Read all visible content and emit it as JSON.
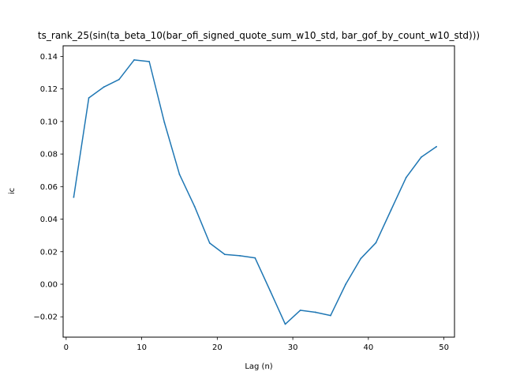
{
  "chart_data": {
    "type": "line",
    "title": "ts_rank_25(sin(ta_beta_10(bar_ofi_signed_quote_sum_w10_std, bar_gof_by_count_w10_std)))",
    "xlabel": "Lag (n)",
    "ylabel": "ic",
    "xlim": [
      -0.4,
      51.4
    ],
    "ylim": [
      -0.0325,
      0.1465
    ],
    "xticks": [
      0,
      10,
      20,
      30,
      40,
      50
    ],
    "yticks": [
      -0.02,
      0.0,
      0.02,
      0.04,
      0.06,
      0.08,
      0.1,
      0.12,
      0.14
    ],
    "ytick_labels": [
      "−0.02",
      "0.00",
      "0.02",
      "0.04",
      "0.06",
      "0.08",
      "0.10",
      "0.12",
      "0.14"
    ],
    "grid": false,
    "series": [
      {
        "color": "#1f77b4",
        "x": [
          1,
          3,
          5,
          7,
          9,
          11,
          13,
          15,
          17,
          19,
          21,
          23,
          25,
          27,
          29,
          31,
          33,
          35,
          37,
          39,
          41,
          43,
          45,
          47,
          49
        ],
        "y": [
          0.0535,
          0.1145,
          0.1212,
          0.1258,
          0.1378,
          0.1368,
          0.0995,
          0.0675,
          0.0478,
          0.0253,
          0.0183,
          0.0175,
          0.0162,
          -0.004,
          -0.0245,
          -0.016,
          -0.0172,
          -0.0192,
          0.0,
          0.0158,
          0.0255,
          0.0456,
          0.0656,
          0.0781,
          0.0845
        ]
      }
    ]
  }
}
